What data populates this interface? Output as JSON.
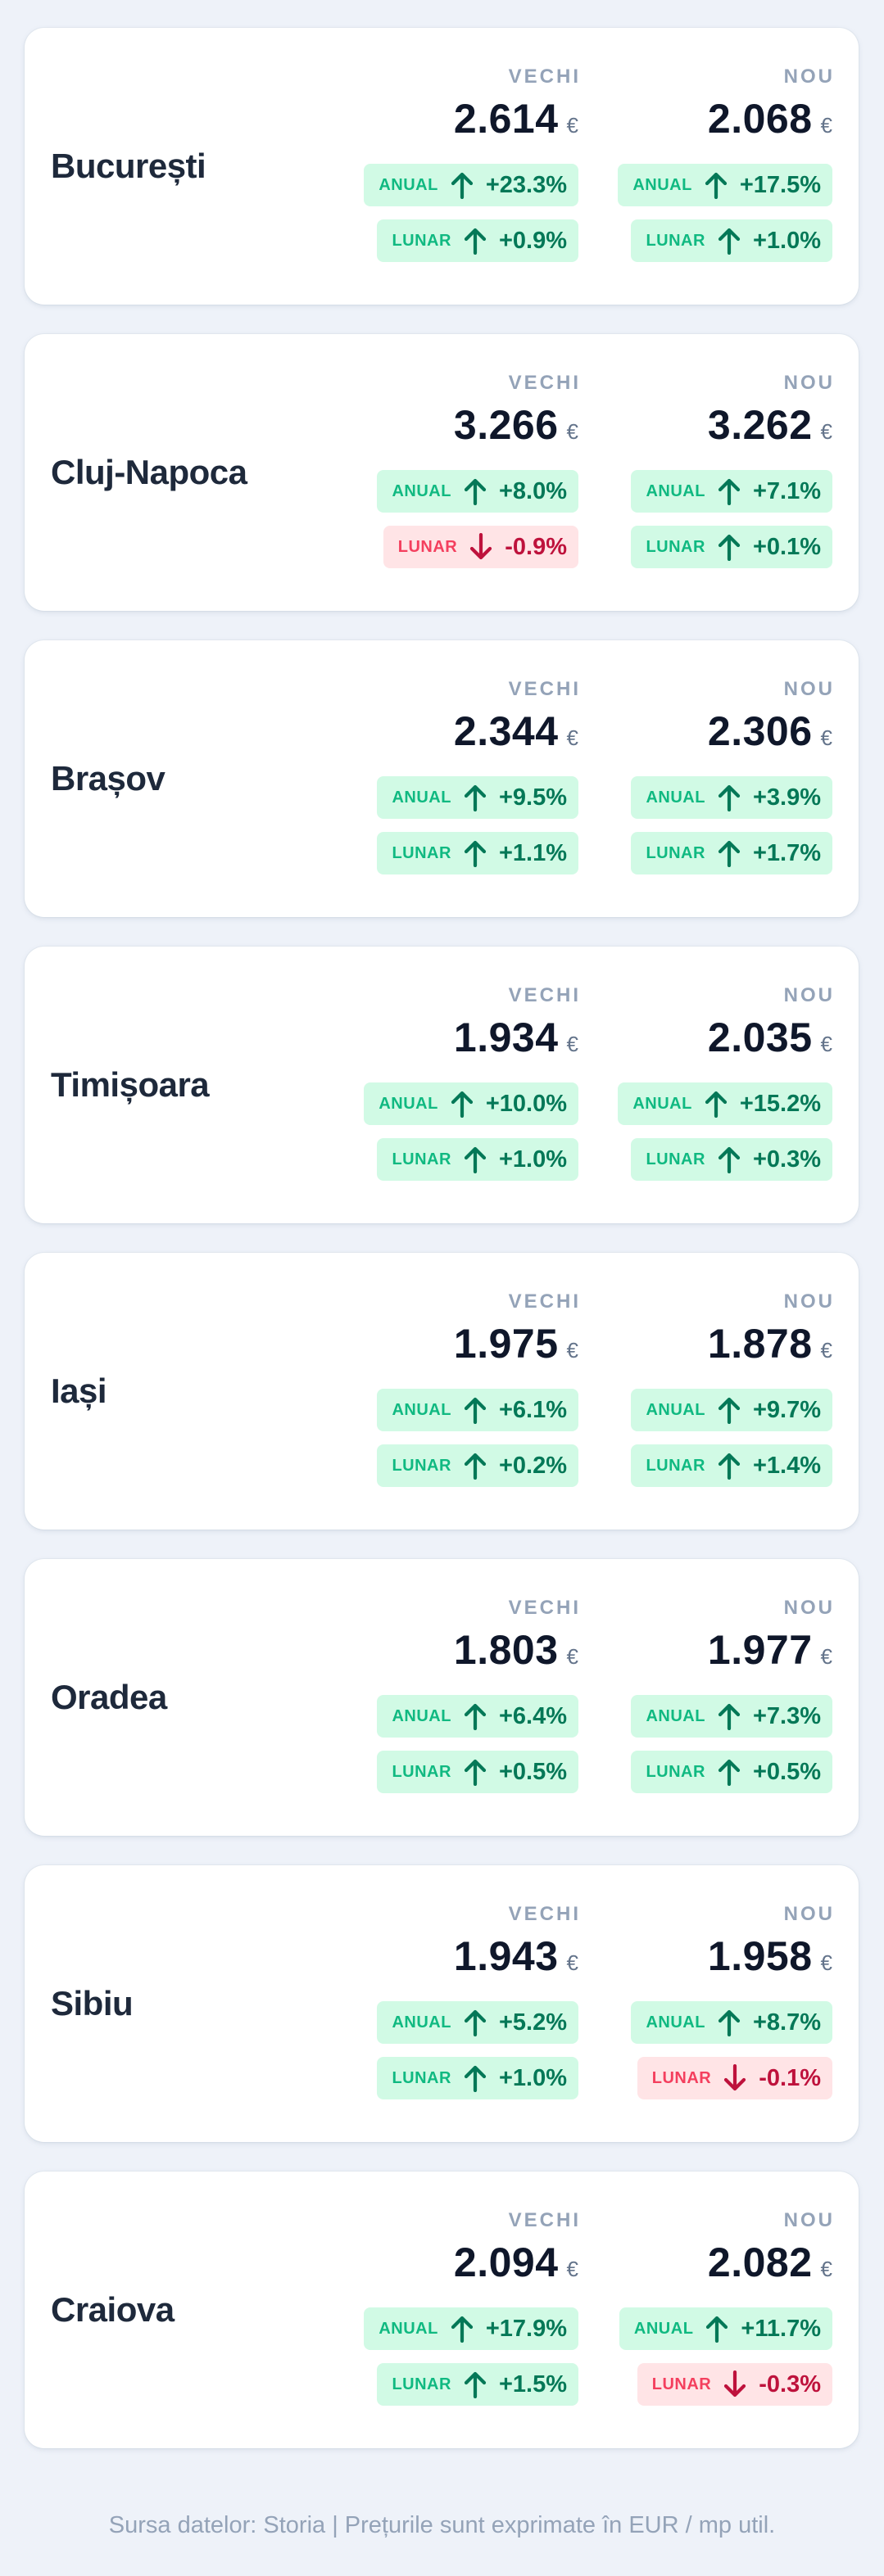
{
  "labels": {
    "old": "VECHI",
    "new": "NOU",
    "currency": "€",
    "annual": "ANUAL",
    "monthly": "LUNAR"
  },
  "colors": {
    "up_bg": "#d1fae5",
    "up_text": "#047857",
    "down_bg": "#ffe4e6",
    "down_text": "#be123c"
  },
  "icons": {
    "up": "arrow-up-icon",
    "down": "arrow-down-icon"
  },
  "cities": [
    {
      "name": "București",
      "old": {
        "price": "2.614",
        "annual": "+23.3%",
        "annual_dir": "up",
        "monthly": "+0.9%",
        "monthly_dir": "up"
      },
      "new": {
        "price": "2.068",
        "annual": "+17.5%",
        "annual_dir": "up",
        "monthly": "+1.0%",
        "monthly_dir": "up"
      }
    },
    {
      "name": "Cluj-Napoca",
      "old": {
        "price": "3.266",
        "annual": "+8.0%",
        "annual_dir": "up",
        "monthly": "-0.9%",
        "monthly_dir": "down"
      },
      "new": {
        "price": "3.262",
        "annual": "+7.1%",
        "annual_dir": "up",
        "monthly": "+0.1%",
        "monthly_dir": "up"
      }
    },
    {
      "name": "Brașov",
      "old": {
        "price": "2.344",
        "annual": "+9.5%",
        "annual_dir": "up",
        "monthly": "+1.1%",
        "monthly_dir": "up"
      },
      "new": {
        "price": "2.306",
        "annual": "+3.9%",
        "annual_dir": "up",
        "monthly": "+1.7%",
        "monthly_dir": "up"
      }
    },
    {
      "name": "Timișoara",
      "old": {
        "price": "1.934",
        "annual": "+10.0%",
        "annual_dir": "up",
        "monthly": "+1.0%",
        "monthly_dir": "up"
      },
      "new": {
        "price": "2.035",
        "annual": "+15.2%",
        "annual_dir": "up",
        "monthly": "+0.3%",
        "monthly_dir": "up"
      }
    },
    {
      "name": "Iași",
      "old": {
        "price": "1.975",
        "annual": "+6.1%",
        "annual_dir": "up",
        "monthly": "+0.2%",
        "monthly_dir": "up"
      },
      "new": {
        "price": "1.878",
        "annual": "+9.7%",
        "annual_dir": "up",
        "monthly": "+1.4%",
        "monthly_dir": "up"
      }
    },
    {
      "name": "Oradea",
      "old": {
        "price": "1.803",
        "annual": "+6.4%",
        "annual_dir": "up",
        "monthly": "+0.5%",
        "monthly_dir": "up"
      },
      "new": {
        "price": "1.977",
        "annual": "+7.3%",
        "annual_dir": "up",
        "monthly": "+0.5%",
        "monthly_dir": "up"
      }
    },
    {
      "name": "Sibiu",
      "old": {
        "price": "1.943",
        "annual": "+5.2%",
        "annual_dir": "up",
        "monthly": "+1.0%",
        "monthly_dir": "up"
      },
      "new": {
        "price": "1.958",
        "annual": "+8.7%",
        "annual_dir": "up",
        "monthly": "-0.1%",
        "monthly_dir": "down"
      }
    },
    {
      "name": "Craiova",
      "old": {
        "price": "2.094",
        "annual": "+17.9%",
        "annual_dir": "up",
        "monthly": "+1.5%",
        "monthly_dir": "up"
      },
      "new": {
        "price": "2.082",
        "annual": "+11.7%",
        "annual_dir": "up",
        "monthly": "-0.3%",
        "monthly_dir": "down"
      }
    }
  ],
  "footer": "Sursa datelor: Storia | Prețurile sunt exprimate în EUR / mp util."
}
